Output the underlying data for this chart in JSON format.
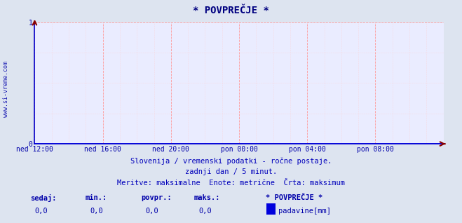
{
  "title": "* POVPREČJE *",
  "background_color": "#dde4f0",
  "plot_bg_color": "#eaecff",
  "grid_color_major": "#ff9999",
  "grid_color_minor": "#ffcccc",
  "axis_color": "#0000cc",
  "title_color": "#000080",
  "label_color": "#0000aa",
  "text_color": "#0000bb",
  "ylim": [
    0,
    1
  ],
  "yticks": [
    0,
    1
  ],
  "xlabel_ticks": [
    "ned 12:00",
    "ned 16:00",
    "ned 20:00",
    "pon 00:00",
    "pon 04:00",
    "pon 08:00"
  ],
  "xtick_positions": [
    0,
    4,
    8,
    12,
    16,
    20
  ],
  "xmax": 24,
  "watermark": "www.si-vreme.com",
  "subtitle_line1": "Slovenija / vremenski podatki - ročne postaje.",
  "subtitle_line2": "zadnji dan / 5 minut.",
  "subtitle_line3": "Meritve: maksimalne  Enote: metrične  Črta: maksimum",
  "legend_title": "* POVPREČJE *",
  "legend_label": "padavine[mm]",
  "legend_color": "#0000dd",
  "stats_labels": [
    "sedaj:",
    "min.:",
    "povpr.:",
    "maks.:"
  ],
  "stats_values": [
    "0,0",
    "0,0",
    "0,0",
    "0,0"
  ],
  "data_x": [
    0,
    24
  ],
  "data_y": [
    0,
    0
  ],
  "arrow_color_x": "#cc0000",
  "arrow_color_y": "#cc0000"
}
